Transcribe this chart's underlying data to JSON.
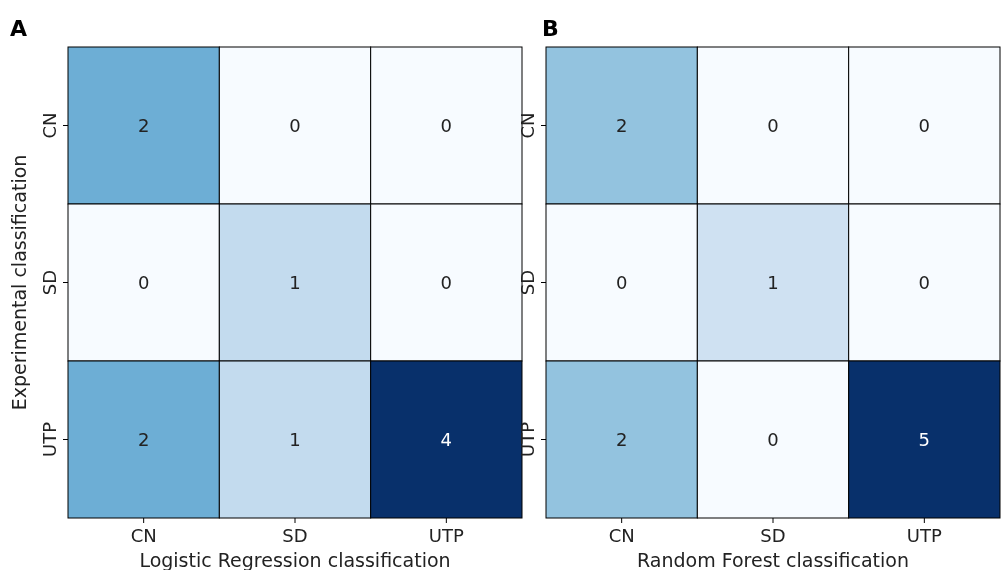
{
  "chart_data": [
    {
      "type": "heatmap",
      "data_labels": true,
      "title": "A",
      "xlabel": "Logistic Regression classification",
      "ylabel": "Experimental classification",
      "categories": [
        "CN",
        "SD",
        "UTP"
      ],
      "y_categories": [
        "CN",
        "SD",
        "UTP"
      ],
      "cells": [
        [
          2,
          0,
          0
        ],
        [
          0,
          1,
          0
        ],
        [
          2,
          1,
          4
        ]
      ]
    },
    {
      "type": "heatmap",
      "data_labels": true,
      "title": "B",
      "xlabel": "Random Forest classification",
      "categories": [
        "CN",
        "SD",
        "UTP"
      ],
      "y_categories": [
        "CN",
        "SD",
        "UTP"
      ],
      "cells": [
        [
          2,
          0,
          0
        ],
        [
          0,
          1,
          0
        ],
        [
          2,
          0,
          5
        ]
      ]
    }
  ]
}
